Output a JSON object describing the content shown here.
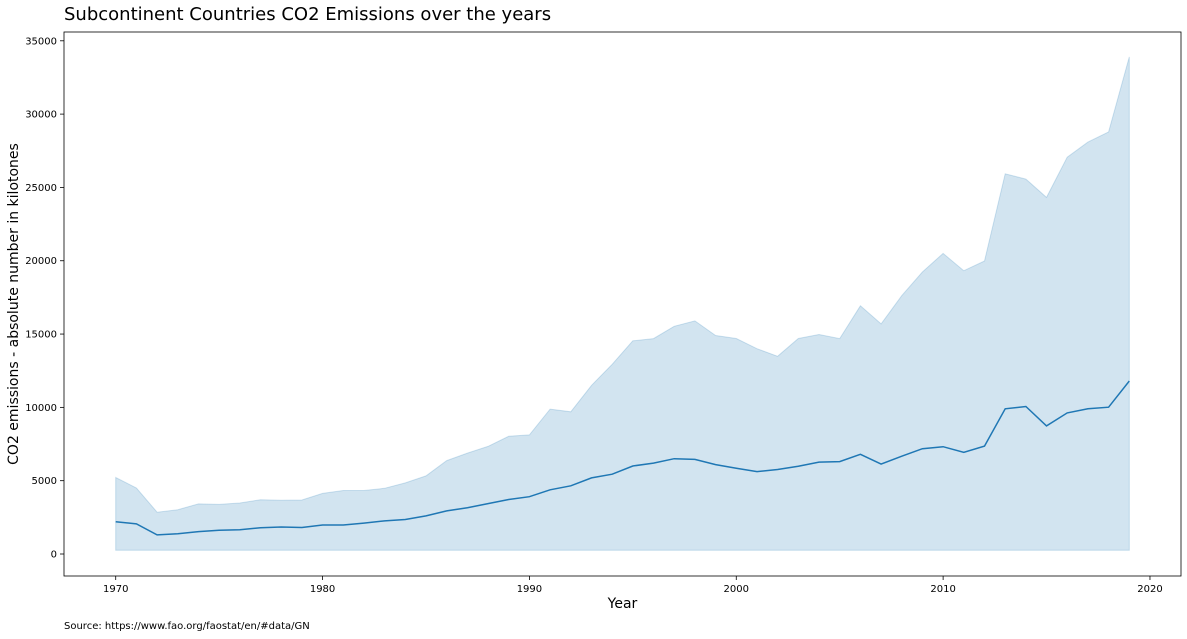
{
  "chart_data": {
    "type": "line",
    "title": "Subcontinent Countries CO2 Emissions over the years",
    "xlabel": "Year",
    "ylabel": "CO2 emissions - absolute number in kilotones",
    "xlim": [
      1967.5,
      2021.5
    ],
    "ylim": [
      -1500,
      35600
    ],
    "x_ticks": [
      1970,
      1980,
      1990,
      2000,
      2010,
      2020
    ],
    "y_ticks": [
      0,
      5000,
      10000,
      15000,
      20000,
      25000,
      30000,
      35000
    ],
    "grid": false,
    "line_color": "#1f77b4",
    "band_color": "#1f77b4",
    "series": [
      {
        "x": [
          1970,
          1971,
          1972,
          1973,
          1974,
          1975,
          1976,
          1977,
          1978,
          1979,
          1980,
          1981,
          1982,
          1983,
          1984,
          1985,
          1986,
          1987,
          1988,
          1989,
          1990,
          1991,
          1992,
          1993,
          1994,
          1995,
          1996,
          1997,
          1998,
          1999,
          2000,
          2001,
          2002,
          2003,
          2004,
          2005,
          2006,
          2007,
          2008,
          2009,
          2010,
          2011,
          2012,
          2013,
          2014,
          2015,
          2016,
          2017,
          2018,
          2019
        ],
        "mean": [
          2200,
          2050,
          1300,
          1380,
          1530,
          1620,
          1660,
          1790,
          1840,
          1810,
          1980,
          1980,
          2110,
          2260,
          2350,
          2600,
          2940,
          3160,
          3440,
          3720,
          3910,
          4380,
          4650,
          5190,
          5440,
          6000,
          6200,
          6500,
          6450,
          6100,
          5850,
          5620,
          5760,
          5990,
          6270,
          6300,
          6800,
          6130,
          6670,
          7180,
          7320,
          6930,
          7360,
          9900,
          10060,
          8740,
          9620,
          9900,
          10010,
          11800
        ],
        "upper": [
          5220,
          4500,
          2850,
          3020,
          3420,
          3380,
          3480,
          3700,
          3660,
          3680,
          4130,
          4330,
          4330,
          4480,
          4850,
          5330,
          6370,
          6880,
          7340,
          8030,
          8120,
          9880,
          9700,
          11500,
          12940,
          14540,
          14690,
          15530,
          15900,
          14900,
          14700,
          14000,
          13480,
          14700,
          14970,
          14690,
          16930,
          15690,
          17620,
          19230,
          20500,
          19320,
          19980,
          25930,
          25570,
          24320,
          27060,
          28090,
          28790,
          33900
        ]
      }
    ]
  },
  "source_text": "Source: https://www.fao.org/faostat/en/#data/GN"
}
